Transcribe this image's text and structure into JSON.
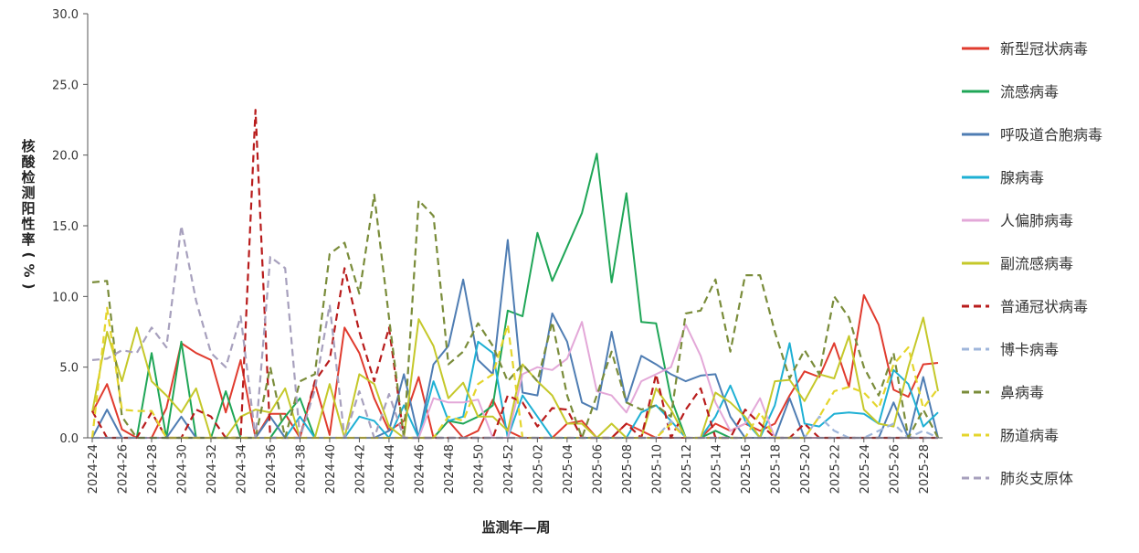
{
  "chart_data": {
    "type": "line",
    "xlabel": "监测年—周",
    "ylabel": "核酸检测阳性率(%)",
    "ylim": [
      0,
      30
    ],
    "yticks": [
      "0.0",
      "5.0",
      "10.0",
      "15.0",
      "20.0",
      "25.0",
      "30.0"
    ],
    "grid": false,
    "legend_position": "right",
    "x": [
      "2024-24",
      "2024-25",
      "2024-26",
      "2024-27",
      "2024-28",
      "2024-29",
      "2024-30",
      "2024-31",
      "2024-32",
      "2024-33",
      "2024-34",
      "2024-35",
      "2024-36",
      "2024-37",
      "2024-38",
      "2024-39",
      "2024-40",
      "2024-41",
      "2024-42",
      "2024-43",
      "2024-44",
      "2024-45",
      "2024-46",
      "2024-47",
      "2024-48",
      "2024-49",
      "2024-50",
      "2024-51",
      "2024-52",
      "2025-01",
      "2025-02",
      "2025-03",
      "2025-04",
      "2025-05",
      "2025-06",
      "2025-07",
      "2025-08",
      "2025-09",
      "2025-10",
      "2025-11",
      "2025-12",
      "2025-13",
      "2025-14",
      "2025-15",
      "2025-16",
      "2025-17",
      "2025-18",
      "2025-19",
      "2025-20",
      "2025-21",
      "2025-22",
      "2025-23",
      "2025-24",
      "2025-25",
      "2025-26",
      "2025-27",
      "2025-28",
      "2025-29"
    ],
    "x_tick_labels": [
      "2024-24",
      "2024-26",
      "2024-28",
      "2024-30",
      "2024-32",
      "2024-34",
      "2024-36",
      "2024-38",
      "2024-40",
      "2024-42",
      "2024-44",
      "2024-46",
      "2024-48",
      "2024-50",
      "2024-52",
      "2025-02",
      "2025-04",
      "2025-06",
      "2025-08",
      "2025-10",
      "2025-12",
      "2025-14",
      "2025-16",
      "2025-18",
      "2025-20",
      "2025-22",
      "2025-24",
      "2025-26",
      "2025-28"
    ],
    "series": [
      {
        "name": "新型冠状病毒",
        "color": "#e03b2e",
        "dash": false,
        "values": [
          1.8,
          3.8,
          0.6,
          0.0,
          0.0,
          2.1,
          6.7,
          6.0,
          5.5,
          1.8,
          5.5,
          0.0,
          1.7,
          1.7,
          0.0,
          3.9,
          0.2,
          7.8,
          6.0,
          2.8,
          0.5,
          1.2,
          4.3,
          0.0,
          1.2,
          0.0,
          0.5,
          2.7,
          0.5,
          0.0,
          0.0,
          0.0,
          1.0,
          1.2,
          0.0,
          0.0,
          1.0,
          0.5,
          0.0,
          0.0,
          0.0,
          0.0,
          1.0,
          0.5,
          1.0,
          0.5,
          1.0,
          3.0,
          4.7,
          4.3,
          6.7,
          3.6,
          10.1,
          8.0,
          3.4,
          2.9,
          5.2,
          5.3
        ]
      },
      {
        "name": "流感病毒",
        "color": "#1fa657",
        "dash": false,
        "values": [
          0.0,
          0.0,
          0.0,
          0.0,
          6.0,
          0.0,
          6.8,
          0.0,
          0.0,
          3.3,
          0.0,
          0.0,
          0.0,
          1.5,
          2.8,
          0.0,
          0.0,
          0.0,
          0.0,
          0.0,
          0.0,
          0.0,
          0.0,
          0.0,
          1.2,
          1.0,
          1.5,
          2.3,
          9.0,
          8.6,
          14.5,
          11.1,
          13.5,
          15.9,
          20.1,
          11.0,
          17.3,
          8.2,
          8.1,
          2.8,
          0.0,
          0.0,
          0.5,
          0.0,
          0.0,
          0.0,
          0.0,
          0.0,
          0.0,
          0.0,
          0.0,
          0.0,
          0.0,
          0.0,
          0.0,
          0.0,
          0.0,
          0.0
        ]
      },
      {
        "name": "呼吸道合胞病毒",
        "color": "#4f7db3",
        "dash": false,
        "values": [
          0.0,
          2.0,
          0.0,
          0.0,
          0.0,
          0.0,
          1.5,
          0.0,
          0.0,
          0.0,
          0.0,
          0.0,
          1.5,
          0.0,
          0.0,
          0.0,
          0.0,
          0.0,
          0.0,
          0.0,
          0.5,
          4.5,
          0.0,
          5.2,
          6.5,
          11.2,
          5.5,
          4.5,
          14.0,
          3.2,
          3.0,
          8.8,
          6.8,
          2.5,
          2.0,
          7.5,
          2.5,
          5.8,
          5.2,
          4.5,
          4.0,
          4.4,
          4.5,
          1.5,
          0.0,
          0.0,
          0.0,
          2.8,
          0.0,
          0.0,
          0.0,
          0.0,
          0.0,
          0.0,
          2.5,
          0.0,
          4.3,
          0.0
        ]
      },
      {
        "name": "腺病毒",
        "color": "#1eb0d4",
        "dash": false,
        "values": [
          0.0,
          0.0,
          0.0,
          0.0,
          0.0,
          0.0,
          0.0,
          0.0,
          0.0,
          0.0,
          0.0,
          0.0,
          0.0,
          0.0,
          1.5,
          0.0,
          0.0,
          0.0,
          1.5,
          1.2,
          0.0,
          2.3,
          0.0,
          4.0,
          1.2,
          1.5,
          6.8,
          6.0,
          0.0,
          3.0,
          1.5,
          0.0,
          0.0,
          0.0,
          0.0,
          0.0,
          0.0,
          1.8,
          2.3,
          1.2,
          0.0,
          0.0,
          1.5,
          3.7,
          1.2,
          0.0,
          2.3,
          6.7,
          1.0,
          0.8,
          1.7,
          1.8,
          1.7,
          1.0,
          4.8,
          3.8,
          0.8,
          1.8
        ]
      },
      {
        "name": "人偏肺病毒",
        "color": "#e3a8d8",
        "dash": false,
        "values": [
          0.0,
          0.0,
          0.0,
          0.0,
          0.0,
          0.0,
          0.0,
          0.0,
          0.0,
          0.0,
          0.0,
          0.0,
          0.0,
          0.0,
          0.0,
          0.0,
          0.0,
          0.0,
          0.0,
          0.0,
          0.0,
          0.0,
          0.0,
          2.8,
          2.5,
          2.5,
          2.7,
          0.0,
          0.0,
          4.5,
          5.0,
          4.8,
          5.6,
          8.2,
          3.3,
          3.0,
          1.8,
          4.0,
          4.5,
          5.0,
          8.0,
          5.8,
          2.5,
          0.5,
          1.0,
          2.8,
          0.0,
          0.0,
          0.0,
          0.0,
          0.0,
          0.0,
          0.0,
          0.0,
          0.0,
          0.0,
          0.0,
          0.0
        ]
      },
      {
        "name": "副流感病毒",
        "color": "#c5c82a",
        "dash": false,
        "values": [
          1.8,
          7.5,
          4.0,
          7.8,
          4.0,
          3.0,
          1.8,
          3.5,
          0.0,
          0.0,
          1.5,
          2.0,
          1.8,
          3.5,
          0.0,
          0.0,
          3.8,
          0.0,
          4.5,
          3.8,
          0.8,
          0.0,
          8.4,
          6.5,
          2.8,
          3.9,
          1.5,
          1.5,
          0.5,
          5.2,
          4.0,
          3.0,
          1.0,
          1.0,
          0.0,
          1.0,
          0.0,
          0.0,
          3.5,
          2.0,
          0.0,
          0.0,
          3.2,
          2.5,
          1.5,
          0.0,
          4.0,
          4.1,
          2.6,
          4.5,
          4.2,
          7.2,
          2.0,
          1.0,
          0.8,
          5.0,
          8.5,
          3.3
        ]
      },
      {
        "name": "普通冠状病毒",
        "color": "#b81c1c",
        "dash": true,
        "values": [
          1.9,
          0.0,
          0.0,
          0.0,
          1.8,
          0.0,
          0.0,
          2.0,
          1.5,
          0.0,
          0.0,
          23.2,
          0.0,
          0.0,
          0.0,
          4.0,
          5.5,
          12.0,
          7.5,
          4.0,
          7.8,
          0.0,
          0.0,
          0.0,
          0.0,
          0.0,
          0.0,
          0.0,
          3.0,
          2.5,
          0.8,
          2.1,
          2.0,
          0.0,
          0.0,
          0.0,
          1.0,
          0.0,
          4.5,
          0.0,
          2.0,
          3.5,
          0.0,
          0.0,
          2.0,
          1.0,
          0.0,
          0.0,
          1.0,
          0.0,
          0.0,
          0.0,
          0.0,
          0.0,
          0.0,
          0.0,
          0.0,
          0.0
        ]
      },
      {
        "name": "博卡病毒",
        "color": "#9fb6db",
        "dash": true,
        "values": [
          0.0,
          0.0,
          0.0,
          0.0,
          0.0,
          0.0,
          0.0,
          0.0,
          0.0,
          0.0,
          0.0,
          0.0,
          0.0,
          0.0,
          0.0,
          0.0,
          0.0,
          0.0,
          0.0,
          0.0,
          0.0,
          0.0,
          0.0,
          0.0,
          0.0,
          0.0,
          0.0,
          0.0,
          0.0,
          0.0,
          0.0,
          0.0,
          0.0,
          0.0,
          0.0,
          0.0,
          0.0,
          0.0,
          0.0,
          1.2,
          0.0,
          0.0,
          0.0,
          0.0,
          0.0,
          0.0,
          0.0,
          0.0,
          0.0,
          1.5,
          0.5,
          0.0,
          0.0,
          0.5,
          1.0,
          0.0,
          0.5,
          0.0
        ]
      },
      {
        "name": "鼻病毒",
        "color": "#7a8c3a",
        "dash": true,
        "values": [
          11.0,
          11.1,
          1.5,
          0.0,
          0.0,
          0.0,
          0.0,
          0.0,
          0.0,
          0.0,
          0.0,
          0.0,
          5.0,
          0.0,
          4.0,
          4.5,
          13.0,
          13.8,
          10.2,
          17.2,
          8.5,
          0.0,
          16.8,
          15.7,
          5.2,
          6.1,
          8.1,
          6.5,
          4.0,
          5.2,
          4.0,
          8.2,
          3.0,
          0.0,
          3.0,
          6.1,
          2.5,
          2.0,
          2.3,
          1.5,
          8.8,
          9.0,
          11.2,
          6.1,
          11.5,
          11.5,
          7.5,
          4.2,
          6.2,
          4.5,
          10.0,
          8.5,
          5.0,
          3.0,
          6.0,
          0.0,
          2.0,
          0.0
        ]
      },
      {
        "name": "肠道病毒",
        "color": "#e4d52c",
        "dash": true,
        "values": [
          0.0,
          9.2,
          2.0,
          1.9,
          1.9,
          0.0,
          0.0,
          0.0,
          0.0,
          0.0,
          0.0,
          0.0,
          0.0,
          0.0,
          0.0,
          0.0,
          0.0,
          0.0,
          0.0,
          0.0,
          0.0,
          0.0,
          0.0,
          0.0,
          1.5,
          1.2,
          3.8,
          4.5,
          8.0,
          0.0,
          0.0,
          0.0,
          0.0,
          0.0,
          0.0,
          0.0,
          0.0,
          0.0,
          0.0,
          1.0,
          0.0,
          0.0,
          0.0,
          0.0,
          0.0,
          1.8,
          0.0,
          0.0,
          0.0,
          1.5,
          3.3,
          3.6,
          3.2,
          2.1,
          5.2,
          6.4,
          2.1,
          3.5
        ]
      },
      {
        "name": "肺炎支原体",
        "color": "#a7a0bd",
        "dash": true,
        "values": [
          5.5,
          5.6,
          6.2,
          6.0,
          7.8,
          6.4,
          15.0,
          9.7,
          6.0,
          5.0,
          8.6,
          0.0,
          12.8,
          12.0,
          0.0,
          3.4,
          9.4,
          0.0,
          3.3,
          0.0,
          3.1,
          0.0,
          0.0,
          0.0,
          0.0,
          0.0,
          0.0,
          0.0,
          0.0,
          0.0,
          0.0,
          0.0,
          0.0,
          0.0,
          0.0,
          0.0,
          0.0,
          0.0,
          0.0,
          0.0,
          0.0,
          0.0,
          0.0,
          0.0,
          0.0,
          0.0,
          0.0,
          0.0,
          0.0,
          0.0,
          0.0,
          0.0,
          0.0,
          0.0,
          0.0,
          0.0,
          0.0,
          0.0
        ]
      }
    ]
  }
}
